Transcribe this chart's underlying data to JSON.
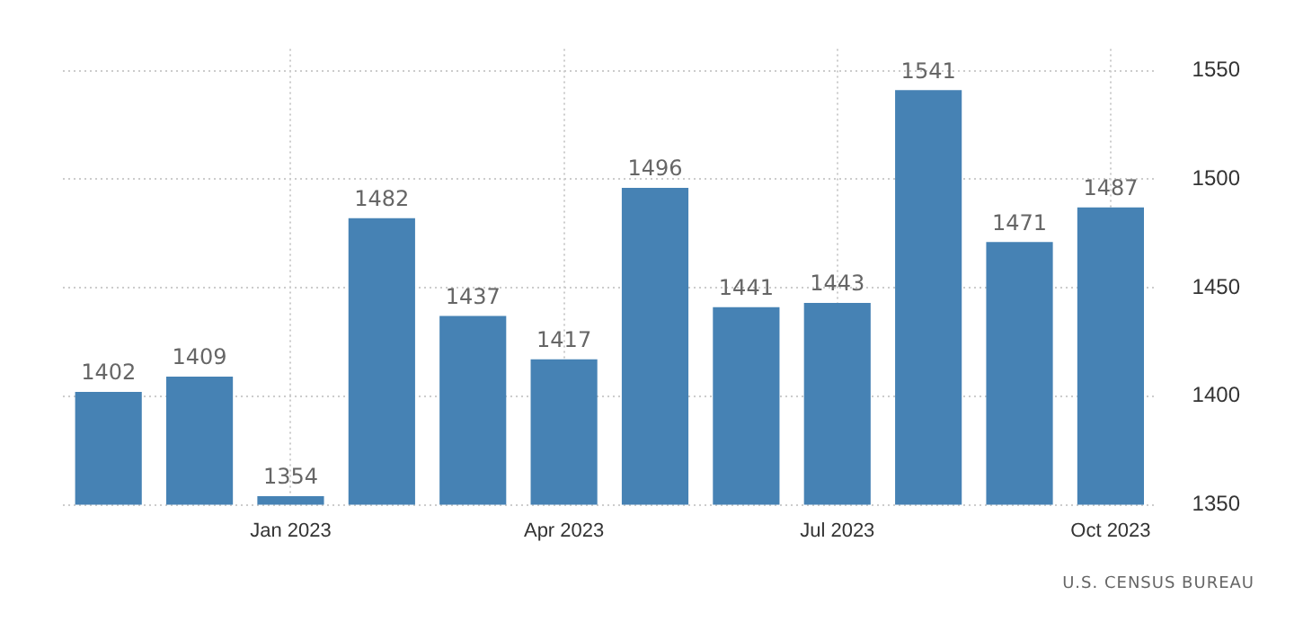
{
  "chart_data": {
    "type": "bar",
    "categories": [
      null,
      null,
      "Jan 2023",
      null,
      null,
      "Apr 2023",
      null,
      null,
      "Jul 2023",
      null,
      null,
      "Oct 2023"
    ],
    "values": [
      1402,
      1409,
      1354,
      1482,
      1437,
      1417,
      1496,
      1441,
      1443,
      1541,
      1471,
      1487
    ],
    "color": "#4682b4",
    "ylim": [
      1350,
      1560
    ],
    "yticks": [
      1350,
      1400,
      1450,
      1500,
      1550
    ],
    "grid": true,
    "data_labels": true,
    "legend": false,
    "annotations": [
      "U.S. CENSUS BUREAU"
    ]
  }
}
